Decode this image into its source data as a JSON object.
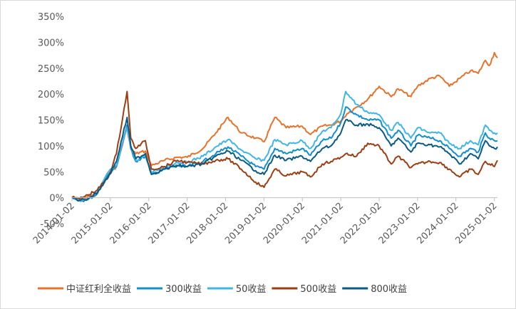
{
  "chart_data": {
    "type": "line",
    "title": "",
    "xlabel": "",
    "ylabel": "",
    "ylim": [
      -0.5,
      3.5
    ],
    "xlim": [
      "2014-01-02",
      "2025-01-31"
    ],
    "y_ticks": [
      -0.5,
      0,
      0.5,
      1.0,
      1.5,
      2.0,
      2.5,
      3.0,
      3.5
    ],
    "y_tick_labels": [
      "-50%",
      "0%",
      "50%",
      "100%",
      "150%",
      "200%",
      "250%",
      "300%",
      "350%"
    ],
    "x_ticks": [
      "2014-01-02",
      "2015-01-02",
      "2016-01-02",
      "2017-01-02",
      "2018-01-02",
      "2019-01-02",
      "2020-01-02",
      "2021-01-02",
      "2022-01-02",
      "2023-01-02",
      "2024-01-02",
      "2025-01-02"
    ],
    "x_tick_labels": [
      "2014-01-02",
      "2015-01-02",
      "2016-01-02",
      "2017-01-02",
      "2018-01-02",
      "2019-01-02",
      "2020-01-02",
      "2021-01-02",
      "2022-01-02",
      "2023-01-02",
      "2024-01-02",
      "2025-01-02"
    ],
    "grid": false,
    "legend_position": "bottom",
    "series": [
      {
        "name": "中证红利全收益",
        "color": "#E8722B",
        "x": [
          "2014-01-02",
          "2014-03-15",
          "2014-06-01",
          "2014-09-01",
          "2014-12-15",
          "2015-03-01",
          "2015-06-10",
          "2015-07-15",
          "2015-09-01",
          "2015-12-01",
          "2016-01-28",
          "2016-06-01",
          "2016-10-01",
          "2017-01-02",
          "2017-06-01",
          "2017-10-01",
          "2018-01-25",
          "2018-06-01",
          "2018-10-15",
          "2019-01-03",
          "2019-04-15",
          "2019-08-01",
          "2019-12-31",
          "2020-03-20",
          "2020-07-10",
          "2020-10-01",
          "2021-01-02",
          "2021-03-01",
          "2021-06-01",
          "2021-09-15",
          "2022-01-02",
          "2022-04-26",
          "2022-07-01",
          "2022-10-31",
          "2023-01-02",
          "2023-05-01",
          "2023-08-01",
          "2023-10-31",
          "2024-02-05",
          "2024-05-20",
          "2024-08-01",
          "2024-10-08",
          "2024-11-15",
          "2025-01-02",
          "2025-01-31"
        ],
        "values": [
          0.0,
          -0.03,
          0.02,
          0.1,
          0.45,
          0.6,
          1.35,
          0.95,
          0.85,
          0.9,
          0.62,
          0.72,
          0.78,
          0.78,
          0.95,
          1.25,
          1.55,
          1.25,
          1.15,
          1.08,
          1.55,
          1.35,
          1.38,
          1.22,
          1.38,
          1.4,
          1.48,
          1.62,
          1.75,
          1.9,
          2.15,
          1.95,
          2.1,
          1.95,
          2.15,
          2.3,
          2.35,
          2.15,
          2.3,
          2.45,
          2.4,
          2.65,
          2.55,
          2.8,
          2.7
        ]
      },
      {
        "name": "300收益",
        "color": "#0F8FD0",
        "x": [
          "2014-01-02",
          "2014-03-15",
          "2014-06-01",
          "2014-09-01",
          "2014-12-15",
          "2015-03-01",
          "2015-06-10",
          "2015-07-15",
          "2015-09-01",
          "2015-12-01",
          "2016-01-28",
          "2016-06-01",
          "2016-10-01",
          "2017-01-02",
          "2017-06-01",
          "2017-10-01",
          "2018-01-25",
          "2018-06-01",
          "2018-10-15",
          "2019-01-03",
          "2019-04-15",
          "2019-08-01",
          "2019-12-31",
          "2020-03-20",
          "2020-07-10",
          "2020-10-01",
          "2021-01-02",
          "2021-02-18",
          "2021-06-01",
          "2021-09-15",
          "2022-01-02",
          "2022-04-26",
          "2022-07-01",
          "2022-10-31",
          "2023-01-02",
          "2023-05-01",
          "2023-08-01",
          "2023-10-31",
          "2024-02-05",
          "2024-05-20",
          "2024-08-01",
          "2024-10-08",
          "2024-11-15",
          "2025-01-02",
          "2025-01-31"
        ],
        "values": [
          0.0,
          -0.06,
          -0.04,
          0.08,
          0.45,
          0.6,
          1.4,
          0.95,
          0.7,
          0.8,
          0.45,
          0.55,
          0.62,
          0.6,
          0.7,
          0.85,
          0.98,
          0.8,
          0.6,
          0.55,
          0.95,
          0.85,
          0.95,
          0.82,
          1.1,
          1.15,
          1.45,
          1.75,
          1.6,
          1.5,
          1.5,
          1.15,
          1.3,
          1.0,
          1.2,
          1.15,
          1.1,
          0.95,
          0.8,
          0.95,
          0.88,
          1.25,
          1.15,
          1.1,
          1.1
        ]
      },
      {
        "name": "50收益",
        "color": "#41B6E6",
        "x": [
          "2014-01-02",
          "2014-03-15",
          "2014-06-01",
          "2014-09-01",
          "2014-12-15",
          "2015-03-01",
          "2015-06-10",
          "2015-07-15",
          "2015-09-01",
          "2015-12-01",
          "2016-01-28",
          "2016-06-01",
          "2016-10-01",
          "2017-01-02",
          "2017-06-01",
          "2017-10-01",
          "2018-01-25",
          "2018-06-01",
          "2018-10-15",
          "2019-01-03",
          "2019-04-15",
          "2019-08-01",
          "2019-12-31",
          "2020-03-20",
          "2020-07-10",
          "2020-10-01",
          "2021-01-02",
          "2021-02-18",
          "2021-06-01",
          "2021-09-15",
          "2022-01-02",
          "2022-04-26",
          "2022-07-01",
          "2022-10-31",
          "2023-01-02",
          "2023-05-01",
          "2023-08-01",
          "2023-10-31",
          "2024-02-05",
          "2024-05-20",
          "2024-08-01",
          "2024-10-08",
          "2024-11-15",
          "2025-01-02",
          "2025-01-31"
        ],
        "values": [
          0.0,
          -0.04,
          -0.02,
          0.1,
          0.5,
          0.62,
          1.35,
          0.98,
          0.72,
          0.82,
          0.48,
          0.6,
          0.68,
          0.68,
          0.8,
          0.98,
          1.12,
          0.92,
          0.75,
          0.72,
          1.12,
          1.02,
          1.1,
          0.95,
          1.28,
          1.35,
          1.62,
          2.05,
          1.8,
          1.65,
          1.6,
          1.3,
          1.45,
          1.15,
          1.35,
          1.25,
          1.25,
          1.05,
          0.95,
          1.1,
          1.02,
          1.4,
          1.3,
          1.25,
          1.25
        ]
      },
      {
        "name": "500收益",
        "color": "#9C3D12",
        "x": [
          "2014-01-02",
          "2014-03-15",
          "2014-06-01",
          "2014-09-01",
          "2014-12-15",
          "2015-03-01",
          "2015-06-10",
          "2015-07-15",
          "2015-09-01",
          "2015-12-01",
          "2016-01-28",
          "2016-06-01",
          "2016-10-01",
          "2017-01-02",
          "2017-06-01",
          "2017-10-01",
          "2018-01-25",
          "2018-06-01",
          "2018-10-15",
          "2019-01-03",
          "2019-04-15",
          "2019-08-01",
          "2019-12-31",
          "2020-03-20",
          "2020-07-10",
          "2020-10-01",
          "2021-01-02",
          "2021-02-18",
          "2021-06-01",
          "2021-09-15",
          "2022-01-02",
          "2022-04-26",
          "2022-07-01",
          "2022-10-31",
          "2023-01-02",
          "2023-05-01",
          "2023-08-01",
          "2023-10-31",
          "2024-02-05",
          "2024-05-20",
          "2024-08-01",
          "2024-10-08",
          "2024-11-15",
          "2025-01-02",
          "2025-01-31"
        ],
        "values": [
          0.0,
          -0.02,
          0.05,
          0.15,
          0.4,
          0.85,
          2.05,
          1.15,
          0.95,
          1.1,
          0.55,
          0.6,
          0.72,
          0.68,
          0.65,
          0.72,
          0.75,
          0.55,
          0.3,
          0.2,
          0.55,
          0.42,
          0.5,
          0.4,
          0.65,
          0.7,
          0.78,
          0.85,
          0.8,
          1.05,
          1.0,
          0.65,
          0.8,
          0.58,
          0.65,
          0.7,
          0.68,
          0.55,
          0.4,
          0.55,
          0.45,
          0.7,
          0.65,
          0.6,
          0.72
        ]
      },
      {
        "name": "800收益",
        "color": "#0B5A84",
        "x": [
          "2014-01-02",
          "2014-03-15",
          "2014-06-01",
          "2014-09-01",
          "2014-12-15",
          "2015-03-01",
          "2015-06-10",
          "2015-07-15",
          "2015-09-01",
          "2015-12-01",
          "2016-01-28",
          "2016-06-01",
          "2016-10-01",
          "2017-01-02",
          "2017-06-01",
          "2017-10-01",
          "2018-01-25",
          "2018-06-01",
          "2018-10-15",
          "2019-01-03",
          "2019-04-15",
          "2019-08-01",
          "2019-12-31",
          "2020-03-20",
          "2020-07-10",
          "2020-10-01",
          "2021-01-02",
          "2021-02-18",
          "2021-06-01",
          "2021-09-15",
          "2022-01-02",
          "2022-04-26",
          "2022-07-01",
          "2022-10-31",
          "2023-01-02",
          "2023-05-01",
          "2023-08-01",
          "2023-10-31",
          "2024-02-05",
          "2024-05-20",
          "2024-08-01",
          "2024-10-08",
          "2024-11-15",
          "2025-01-02",
          "2025-01-31"
        ],
        "values": [
          0.0,
          -0.05,
          -0.02,
          0.1,
          0.42,
          0.7,
          1.55,
          1.0,
          0.75,
          0.85,
          0.45,
          0.55,
          0.62,
          0.6,
          0.65,
          0.8,
          0.9,
          0.72,
          0.52,
          0.45,
          0.82,
          0.72,
          0.8,
          0.7,
          0.95,
          1.0,
          1.25,
          1.5,
          1.4,
          1.42,
          1.35,
          1.0,
          1.15,
          0.88,
          1.05,
          1.02,
          0.98,
          0.85,
          0.65,
          0.85,
          0.75,
          1.1,
          1.0,
          0.95,
          0.98
        ]
      }
    ]
  }
}
